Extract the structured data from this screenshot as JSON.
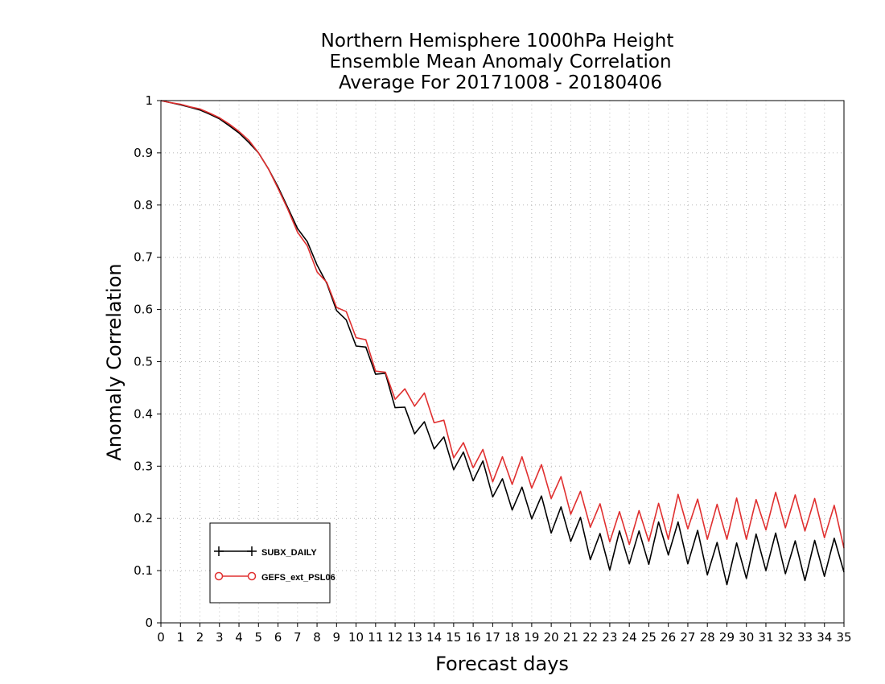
{
  "chart_data": {
    "type": "line",
    "title_lines": [
      "Northern Hemisphere 1000hPa Height",
      "Ensemble Mean Anomaly Correlation",
      "Average For 20171008 - 20180406"
    ],
    "xlabel": "Forecast days",
    "ylabel": "Anomaly Correlation",
    "xlim": [
      0,
      35
    ],
    "ylim": [
      0,
      1
    ],
    "x_ticks": [
      "0",
      "1",
      "2",
      "3",
      "4",
      "5",
      "6",
      "7",
      "8",
      "9",
      "10",
      "11",
      "12",
      "13",
      "14",
      "15",
      "16",
      "17",
      "18",
      "19",
      "20",
      "21",
      "22",
      "23",
      "24",
      "25",
      "26",
      "27",
      "28",
      "29",
      "30",
      "31",
      "32",
      "33",
      "34",
      "35"
    ],
    "y_ticks": [
      "0",
      "0.1",
      "0.2",
      "0.3",
      "0.4",
      "0.5",
      "0.6",
      "0.7",
      "0.8",
      "0.9",
      "1"
    ],
    "grid": true,
    "legend_position": "bottom-left",
    "series": [
      {
        "name": "SUBX_DAILY",
        "color": "#000000",
        "marker": "plus",
        "x": [
          0,
          0.5,
          1,
          1.5,
          2,
          2.5,
          3,
          3.5,
          4,
          4.5,
          5,
          5.5,
          6,
          6.5,
          7,
          7.5,
          8,
          8.5,
          9,
          9.5,
          10,
          10.5,
          11,
          11.5,
          12,
          12.5,
          13,
          13.5,
          14,
          14.5,
          15,
          15.5,
          16,
          16.5,
          17,
          17.5,
          18,
          18.5,
          19,
          19.5,
          20,
          20.5,
          21,
          21.5,
          22,
          22.5,
          23,
          23.5,
          24,
          24.5,
          25,
          25.5,
          26,
          26.5,
          27,
          27.5,
          28,
          28.5,
          29,
          29.5,
          30,
          30.5,
          31,
          31.5,
          32,
          32.5,
          33,
          33.5,
          34,
          34.5,
          35
        ],
        "values": [
          1.0,
          0.996,
          0.992,
          0.987,
          0.982,
          0.974,
          0.965,
          0.952,
          0.938,
          0.92,
          0.9,
          0.87,
          0.835,
          0.795,
          0.755,
          0.73,
          0.685,
          0.65,
          0.598,
          0.58,
          0.53,
          0.528,
          0.476,
          0.478,
          0.412,
          0.413,
          0.362,
          0.385,
          0.333,
          0.356,
          0.293,
          0.327,
          0.272,
          0.31,
          0.241,
          0.276,
          0.216,
          0.26,
          0.199,
          0.243,
          0.172,
          0.222,
          0.156,
          0.202,
          0.121,
          0.171,
          0.101,
          0.176,
          0.113,
          0.176,
          0.112,
          0.193,
          0.13,
          0.193,
          0.113,
          0.177,
          0.092,
          0.154,
          0.073,
          0.153,
          0.085,
          0.17,
          0.1,
          0.172,
          0.094,
          0.157,
          0.081,
          0.158,
          0.089,
          0.162,
          0.097
        ]
      },
      {
        "name": "GEFS_ext_PSL06",
        "color": "#e03030",
        "marker": "circle",
        "x": [
          0,
          0.5,
          1,
          1.5,
          2,
          2.5,
          3,
          3.5,
          4,
          4.5,
          5,
          5.5,
          6,
          6.5,
          7,
          7.5,
          8,
          8.5,
          9,
          9.5,
          10,
          10.5,
          11,
          11.5,
          12,
          12.5,
          13,
          13.5,
          14,
          14.5,
          15,
          15.5,
          16,
          16.5,
          17,
          17.5,
          18,
          18.5,
          19,
          19.5,
          20,
          20.5,
          21,
          21.5,
          22,
          22.5,
          23,
          23.5,
          24,
          24.5,
          25,
          25.5,
          26,
          26.5,
          27,
          27.5,
          28,
          28.5,
          29,
          29.5,
          30,
          30.5,
          31,
          31.5,
          32,
          32.5,
          33,
          33.5,
          34,
          34.5,
          35
        ],
        "values": [
          1.0,
          0.996,
          0.993,
          0.988,
          0.984,
          0.976,
          0.967,
          0.955,
          0.941,
          0.924,
          0.9,
          0.87,
          0.832,
          0.792,
          0.748,
          0.722,
          0.672,
          0.652,
          0.604,
          0.596,
          0.546,
          0.542,
          0.482,
          0.48,
          0.428,
          0.448,
          0.415,
          0.44,
          0.383,
          0.388,
          0.316,
          0.345,
          0.297,
          0.332,
          0.27,
          0.318,
          0.265,
          0.318,
          0.258,
          0.303,
          0.238,
          0.28,
          0.208,
          0.252,
          0.183,
          0.228,
          0.155,
          0.213,
          0.15,
          0.215,
          0.156,
          0.229,
          0.16,
          0.246,
          0.18,
          0.237,
          0.16,
          0.227,
          0.16,
          0.239,
          0.16,
          0.236,
          0.178,
          0.25,
          0.182,
          0.245,
          0.176,
          0.238,
          0.163,
          0.225,
          0.143
        ]
      }
    ]
  }
}
